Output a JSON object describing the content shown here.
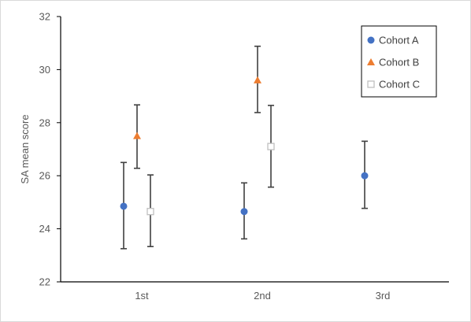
{
  "chart_data": {
    "type": "scatter",
    "title": "",
    "xlabel": "",
    "ylabel": "SA mean score",
    "categories": [
      "1st",
      "2nd",
      "3rd"
    ],
    "ylim": [
      22,
      32
    ],
    "yticks": [
      22,
      24,
      26,
      28,
      30,
      32
    ],
    "grid": false,
    "legend_position": "top-right",
    "error_bars": true,
    "series": [
      {
        "name": "Cohort A",
        "marker": "circle",
        "color": "#4472c4",
        "points": [
          {
            "category": "1st",
            "y": 24.85,
            "err_low": 23.25,
            "err_high": 26.5
          },
          {
            "category": "2nd",
            "y": 24.65,
            "err_low": 23.62,
            "err_high": 25.73
          },
          {
            "category": "3rd",
            "y": 26.0,
            "err_low": 24.77,
            "err_high": 27.3
          }
        ]
      },
      {
        "name": "Cohort B",
        "marker": "triangle",
        "color": "#ed7d31",
        "points": [
          {
            "category": "1st",
            "y": 27.5,
            "err_low": 26.28,
            "err_high": 28.67
          },
          {
            "category": "2nd",
            "y": 29.6,
            "err_low": 28.38,
            "err_high": 30.88
          }
        ]
      },
      {
        "name": "Cohort C",
        "marker": "open-square",
        "color": "#bfbfbf",
        "points": [
          {
            "category": "1st",
            "y": 24.65,
            "err_low": 23.33,
            "err_high": 26.03
          },
          {
            "category": "2nd",
            "y": 27.1,
            "err_low": 25.57,
            "err_high": 28.65
          }
        ]
      }
    ]
  }
}
